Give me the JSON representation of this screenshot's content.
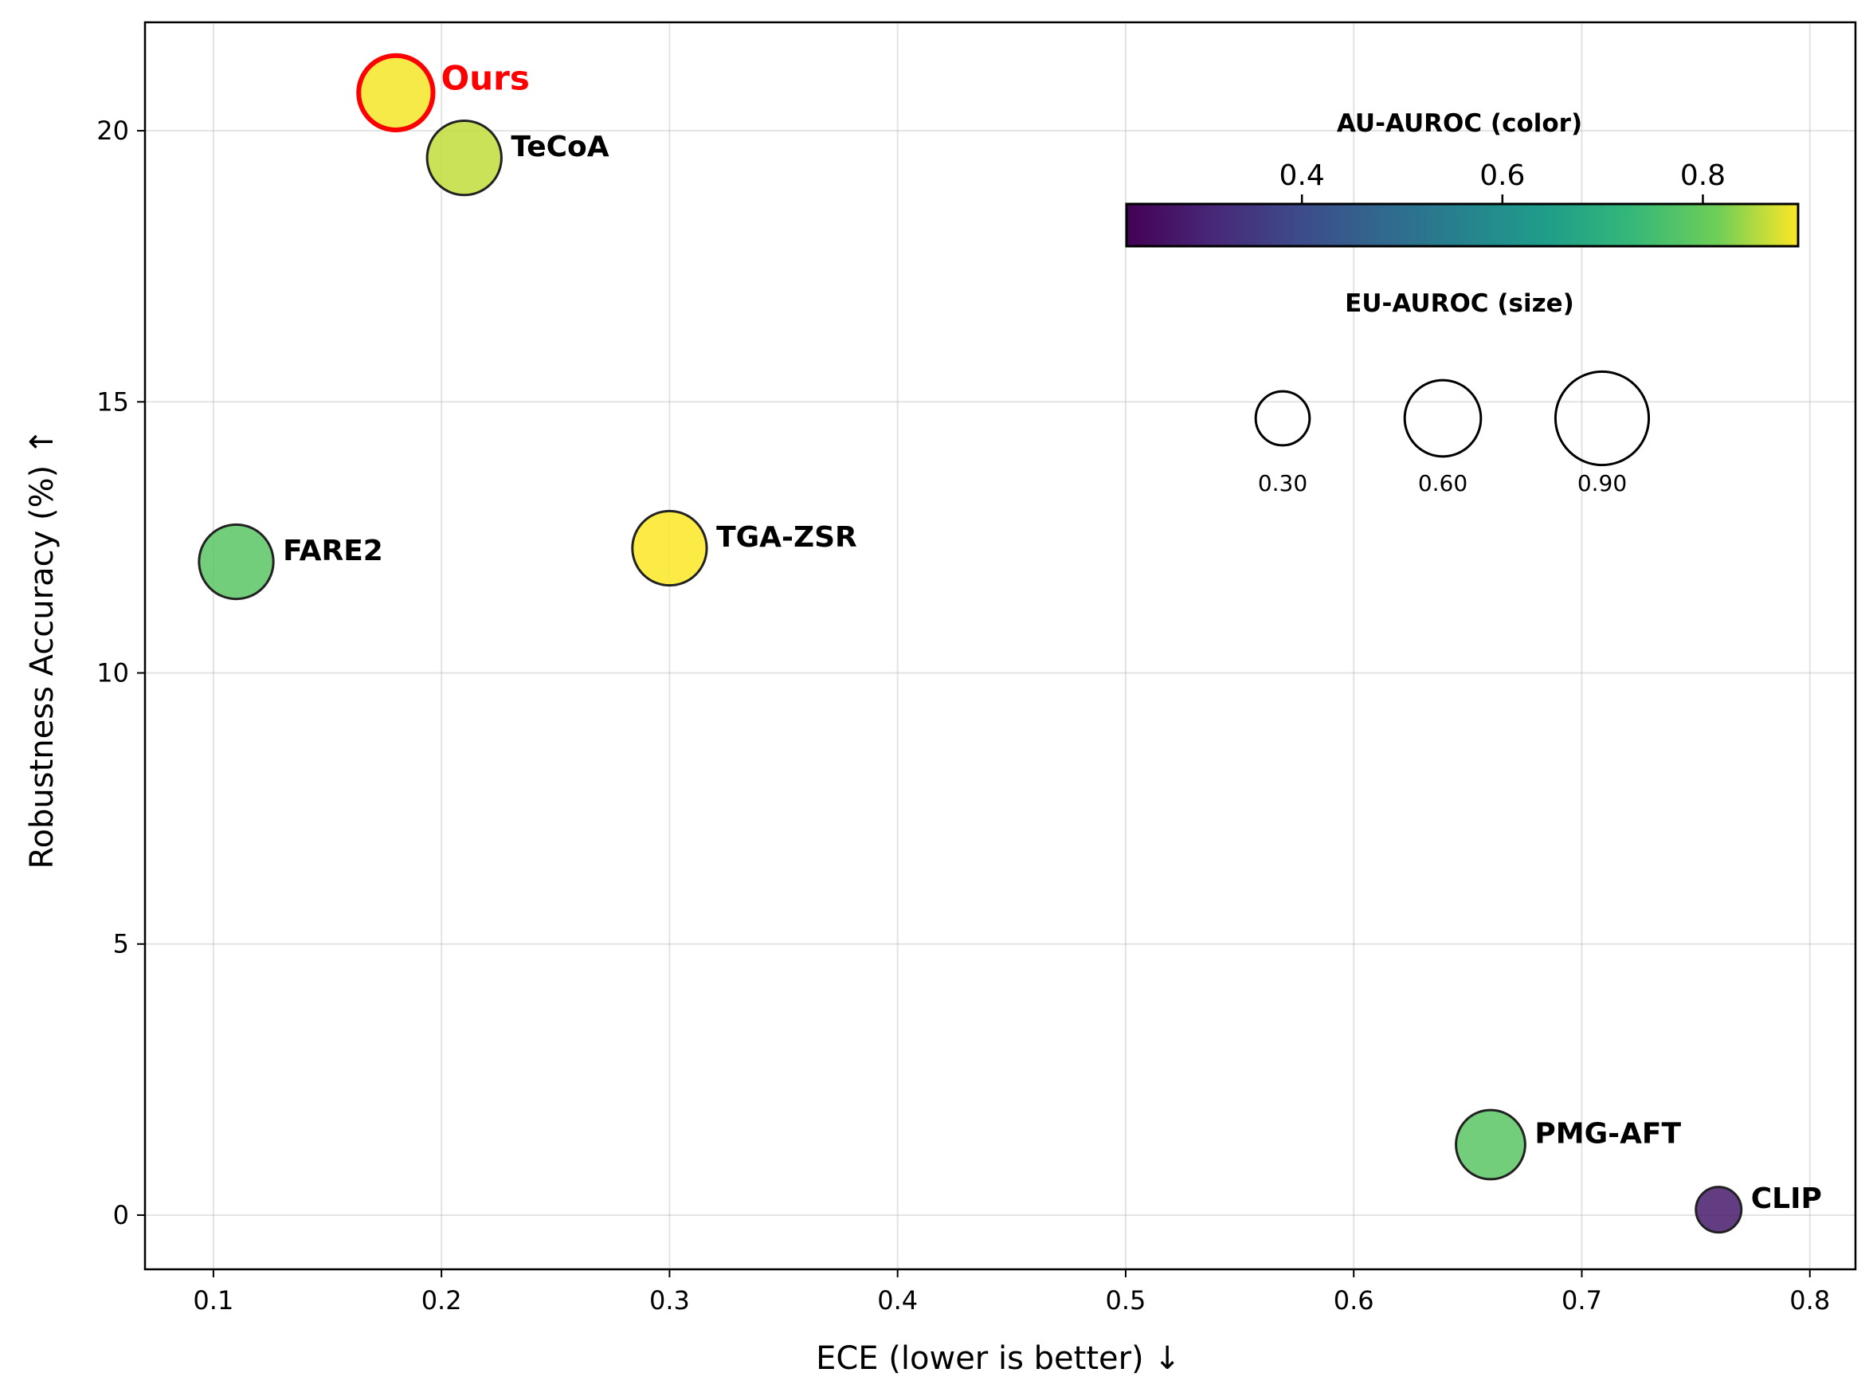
{
  "chart_data": {
    "type": "scatter",
    "xlabel": "ECE (lower is better)  ↓",
    "ylabel": "Robustness Accuracy (%)  ↑",
    "xlim": [
      0.07,
      0.82
    ],
    "ylim": [
      -1,
      22
    ],
    "xticks": [
      "0.1",
      "0.2",
      "0.3",
      "0.4",
      "0.5",
      "0.6",
      "0.7",
      "0.8"
    ],
    "yticks": [
      "0",
      "5",
      "10",
      "15",
      "20"
    ],
    "grid": true,
    "points": [
      {
        "name": "Ours",
        "x": 0.18,
        "y": 20.7,
        "au_auroc": 0.89,
        "eu_auroc": 0.67,
        "highlight": true
      },
      {
        "name": "TeCoA",
        "x": 0.21,
        "y": 19.5,
        "au_auroc": 0.86,
        "eu_auroc": 0.67,
        "highlight": false
      },
      {
        "name": "FARE2",
        "x": 0.11,
        "y": 12.05,
        "au_auroc": 0.78,
        "eu_auroc": 0.67,
        "highlight": false
      },
      {
        "name": "TGA-ZSR",
        "x": 0.3,
        "y": 12.3,
        "au_auroc": 0.9,
        "eu_auroc": 0.67,
        "highlight": false
      },
      {
        "name": "PMG-AFT",
        "x": 0.66,
        "y": 1.3,
        "au_auroc": 0.78,
        "eu_auroc": 0.58,
        "highlight": false
      },
      {
        "name": "CLIP",
        "x": 0.76,
        "y": 0.1,
        "au_auroc": 0.28,
        "eu_auroc": 0.25,
        "highlight": false
      }
    ],
    "colorbar": {
      "title": "AU-AUROC (color)",
      "range": [
        0.225,
        0.895
      ],
      "ticks": [
        "0.4",
        "0.6",
        "0.8"
      ],
      "colormap": "viridis"
    },
    "size_legend": {
      "title": "EU-AUROC (size)",
      "values": [
        "0.30",
        "0.60",
        "0.90"
      ]
    },
    "colors": {
      "highlight_edge": "#ff0000",
      "highlight_label": "#ff0000",
      "marker_edge": "#222222"
    }
  }
}
